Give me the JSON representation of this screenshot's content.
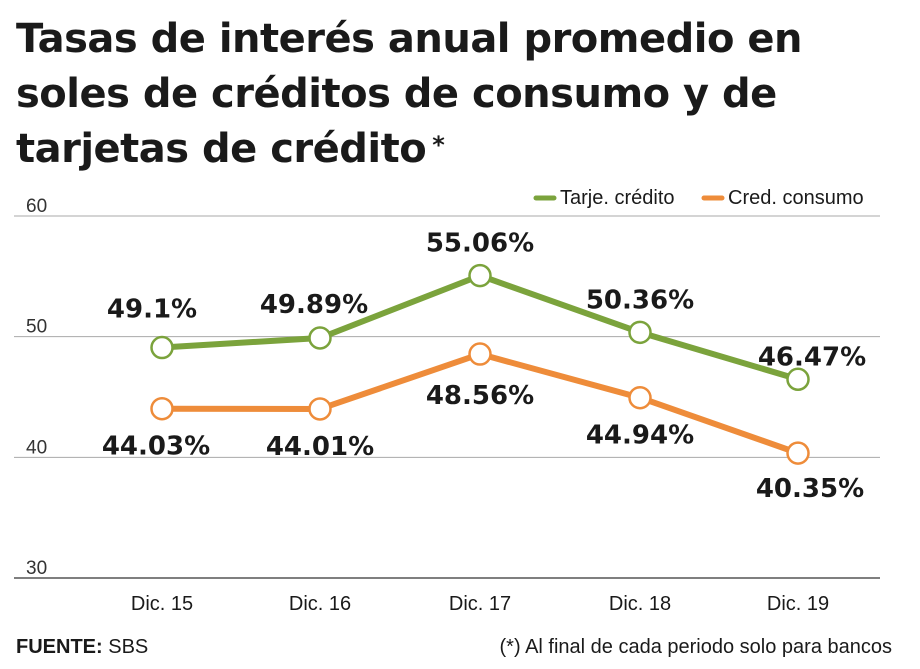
{
  "title": {
    "line1": "Tasas de interés anual promedio en",
    "line2": "soles de créditos de consumo y de",
    "line3": "tarjetas de crédito",
    "asterisk": "*"
  },
  "footer": {
    "source_label": "FUENTE:",
    "source_value": "SBS",
    "note": "(*) Al final de cada periodo solo para bancos"
  },
  "chart_data": {
    "type": "line",
    "categories": [
      "Dic. 15",
      "Dic. 16",
      "Dic. 17",
      "Dic. 18",
      "Dic. 19"
    ],
    "ylim": [
      30,
      60
    ],
    "yticks": [
      30,
      40,
      50,
      60
    ],
    "grid": true,
    "legend_position": "top-right",
    "series": [
      {
        "name": "Tarje. crédito",
        "color": "#7ba33c",
        "values": [
          49.1,
          49.89,
          55.06,
          50.36,
          46.47
        ],
        "labels": [
          "49.1%",
          "49.89%",
          "55.06%",
          "50.36%",
          "46.47%"
        ]
      },
      {
        "name": "Cred. consumo",
        "color": "#ee8c3a",
        "values": [
          44.03,
          44.01,
          48.56,
          44.94,
          40.35
        ],
        "labels": [
          "44.03%",
          "44.01%",
          "48.56%",
          "44.94%",
          "40.35%"
        ]
      }
    ]
  }
}
